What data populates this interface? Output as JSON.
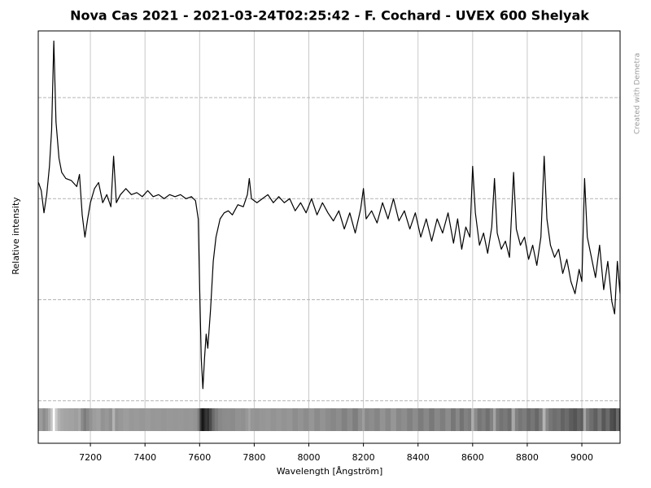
{
  "chart_data": {
    "type": "line",
    "title": "Nova Cas 2021 - 2021-03-24T02:25:42 - F. Cochard - UVEX 600 Shelyak",
    "x_label": "Wavelength [Ångström]",
    "y_label": "Relative intensity",
    "credit": "Created with Demetra",
    "color": "#000000",
    "xlim": [
      7009,
      9140
    ],
    "ylim": [
      -0.21,
      1.83
    ],
    "xticks": [
      7200,
      7400,
      7600,
      7800,
      8000,
      8200,
      8400,
      8600,
      8800,
      9000
    ],
    "ygrid": [
      0,
      0.5,
      1,
      1.5
    ],
    "grid": true,
    "x": [
      7010,
      7020,
      7030,
      7040,
      7050,
      7058,
      7066,
      7074,
      7085,
      7095,
      7110,
      7130,
      7150,
      7160,
      7170,
      7180,
      7190,
      7200,
      7215,
      7230,
      7245,
      7260,
      7275,
      7285,
      7295,
      7310,
      7330,
      7350,
      7370,
      7390,
      7410,
      7430,
      7450,
      7470,
      7490,
      7510,
      7530,
      7550,
      7570,
      7585,
      7595,
      7600,
      7606,
      7612,
      7618,
      7624,
      7630,
      7640,
      7650,
      7660,
      7675,
      7690,
      7705,
      7720,
      7740,
      7760,
      7775,
      7782,
      7790,
      7810,
      7830,
      7850,
      7870,
      7890,
      7910,
      7930,
      7950,
      7970,
      7990,
      8010,
      8030,
      8050,
      8070,
      8090,
      8110,
      8130,
      8150,
      8170,
      8190,
      8200,
      8210,
      8230,
      8250,
      8270,
      8290,
      8310,
      8330,
      8350,
      8370,
      8390,
      8410,
      8430,
      8450,
      8470,
      8490,
      8510,
      8530,
      8545,
      8560,
      8575,
      8590,
      8600,
      8610,
      8625,
      8640,
      8655,
      8670,
      8680,
      8690,
      8705,
      8720,
      8735,
      8750,
      8760,
      8775,
      8790,
      8805,
      8820,
      8835,
      8850,
      8862,
      8872,
      8885,
      8900,
      8915,
      8930,
      8945,
      8960,
      8975,
      8990,
      9000,
      9010,
      9020,
      9035,
      9050,
      9065,
      9080,
      9095,
      9110,
      9120,
      9130,
      9140
    ],
    "values": [
      1.08,
      1.04,
      0.93,
      1.02,
      1.16,
      1.34,
      1.78,
      1.38,
      1.2,
      1.13,
      1.1,
      1.09,
      1.06,
      1.12,
      0.92,
      0.81,
      0.9,
      0.98,
      1.05,
      1.08,
      0.98,
      1.02,
      0.96,
      1.21,
      0.98,
      1.02,
      1.05,
      1.02,
      1.03,
      1.01,
      1.04,
      1.01,
      1.02,
      1.0,
      1.02,
      1.01,
      1.02,
      1.0,
      1.01,
      0.99,
      0.9,
      0.57,
      0.21,
      0.06,
      0.21,
      0.33,
      0.26,
      0.45,
      0.69,
      0.81,
      0.9,
      0.93,
      0.94,
      0.92,
      0.97,
      0.96,
      1.02,
      1.1,
      1.0,
      0.98,
      1.0,
      1.02,
      0.98,
      1.01,
      0.98,
      1.0,
      0.94,
      0.98,
      0.93,
      1.0,
      0.92,
      0.98,
      0.93,
      0.89,
      0.94,
      0.85,
      0.93,
      0.83,
      0.95,
      1.05,
      0.9,
      0.94,
      0.88,
      0.98,
      0.9,
      1.0,
      0.89,
      0.94,
      0.85,
      0.93,
      0.81,
      0.9,
      0.79,
      0.9,
      0.83,
      0.93,
      0.78,
      0.9,
      0.75,
      0.86,
      0.81,
      1.16,
      0.93,
      0.77,
      0.83,
      0.73,
      0.86,
      1.1,
      0.83,
      0.75,
      0.79,
      0.71,
      1.13,
      0.85,
      0.77,
      0.81,
      0.7,
      0.77,
      0.67,
      0.81,
      1.21,
      0.9,
      0.77,
      0.71,
      0.75,
      0.63,
      0.7,
      0.59,
      0.53,
      0.65,
      0.59,
      1.1,
      0.81,
      0.71,
      0.61,
      0.77,
      0.55,
      0.69,
      0.49,
      0.43,
      0.69,
      0.53
    ]
  }
}
